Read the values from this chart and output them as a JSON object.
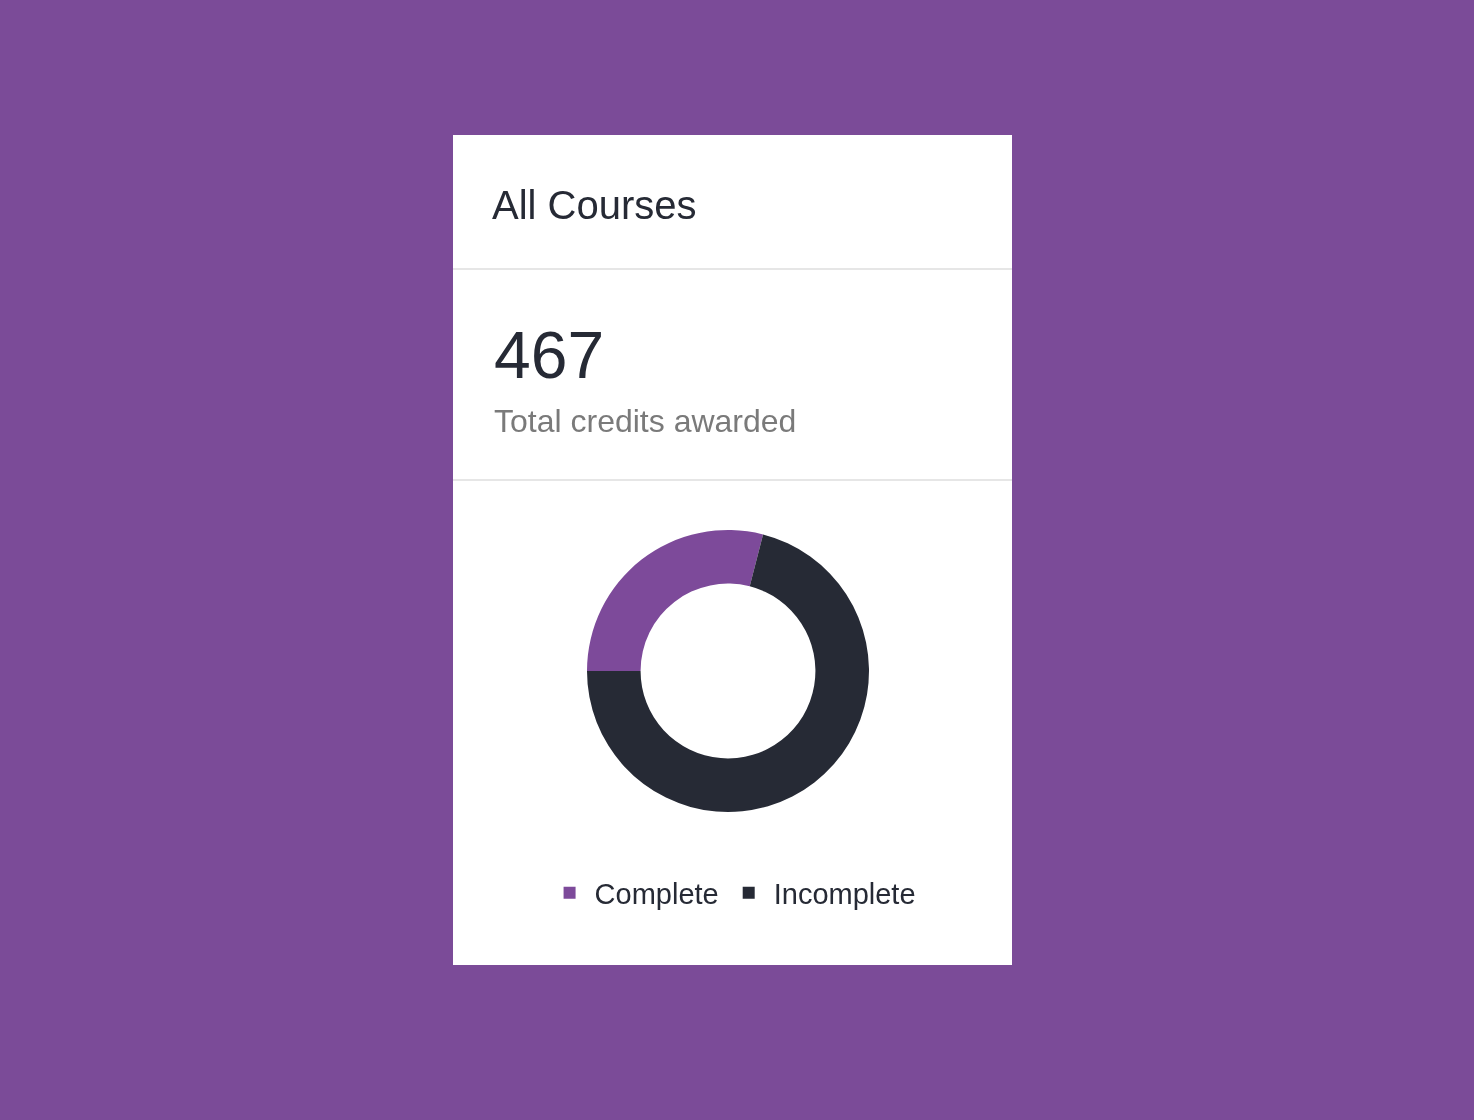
{
  "chart_data": {
    "type": "donut",
    "title": "All Courses",
    "annotations": [
      "467",
      "Total credits awarded"
    ],
    "categories": [
      "Complete",
      "Incomplete"
    ],
    "values": [
      29,
      71
    ],
    "colors": [
      "#7d4a9a",
      "#262a35"
    ],
    "legend": "bottom"
  }
}
